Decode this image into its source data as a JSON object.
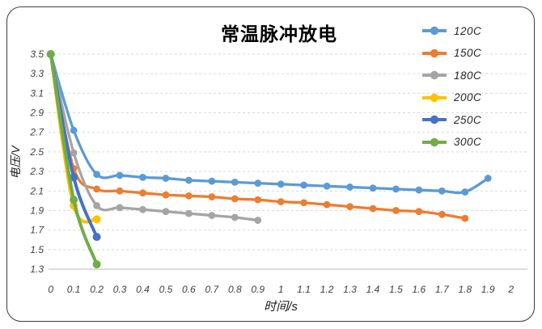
{
  "chart_data": {
    "type": "line",
    "title": "常温脉冲放电",
    "xlabel": "时间/s",
    "ylabel": "电压/V",
    "xlim": [
      0,
      2
    ],
    "ylim": [
      1.3,
      3.5
    ],
    "x_ticks": [
      "0",
      "0.1",
      "0.2",
      "0.3",
      "0.4",
      "0.5",
      "0.6",
      "0.7",
      "0.8",
      "0.9",
      "1",
      "1.1",
      "1.2",
      "1.3",
      "1.4",
      "1.5",
      "1.6",
      "1.7",
      "1.8",
      "1.9",
      "2"
    ],
    "y_ticks": [
      "1.3",
      "1.5",
      "1.7",
      "1.9",
      "2.1",
      "2.3",
      "2.5",
      "2.7",
      "2.9",
      "3.1",
      "3.3",
      "3.5"
    ],
    "grid": "horizontal-dashed",
    "legend_position": "top-right",
    "series": [
      {
        "name": "120C",
        "color": "#5B9BD5",
        "x": [
          0,
          0.1,
          0.2,
          0.3,
          0.4,
          0.5,
          0.6,
          0.7,
          0.8,
          0.9,
          1,
          1.1,
          1.2,
          1.3,
          1.4,
          1.5,
          1.6,
          1.7,
          1.8,
          1.9
        ],
        "y": [
          3.5,
          2.72,
          2.27,
          2.26,
          2.24,
          2.23,
          2.21,
          2.2,
          2.19,
          2.18,
          2.17,
          2.16,
          2.15,
          2.14,
          2.13,
          2.12,
          2.11,
          2.1,
          2.09,
          2.23
        ]
      },
      {
        "name": "150C",
        "color": "#ED7D31",
        "x": [
          0,
          0.1,
          0.2,
          0.3,
          0.4,
          0.5,
          0.6,
          0.7,
          0.8,
          0.9,
          1,
          1.1,
          1.2,
          1.3,
          1.4,
          1.5,
          1.6,
          1.7,
          1.8
        ],
        "y": [
          3.5,
          2.33,
          2.12,
          2.1,
          2.08,
          2.06,
          2.05,
          2.04,
          2.02,
          2.01,
          1.99,
          1.98,
          1.96,
          1.94,
          1.92,
          1.9,
          1.89,
          1.86,
          1.82
        ]
      },
      {
        "name": "180C",
        "color": "#A5A5A5",
        "x": [
          0,
          0.1,
          0.2,
          0.3,
          0.4,
          0.5,
          0.6,
          0.7,
          0.8,
          0.9
        ],
        "y": [
          3.5,
          2.49,
          1.95,
          1.93,
          1.91,
          1.89,
          1.87,
          1.85,
          1.83,
          1.8
        ]
      },
      {
        "name": "200C",
        "color": "#FFC000",
        "x": [
          0,
          0.1,
          0.2
        ],
        "y": [
          3.5,
          1.95,
          1.81
        ]
      },
      {
        "name": "250C",
        "color": "#4472C4",
        "x": [
          0,
          0.1,
          0.2
        ],
        "y": [
          3.5,
          2.24,
          1.63
        ]
      },
      {
        "name": "300C",
        "color": "#70AD47",
        "x": [
          0,
          0.1,
          0.2
        ],
        "y": [
          3.5,
          2.01,
          1.35
        ]
      }
    ]
  },
  "styles": {
    "grid_color": "#D9D9D9",
    "axis_line_color": "#C6C6C6",
    "tick_color": "#404040",
    "title_color": "#000000",
    "border_color": "#3D3D3D",
    "background": "#FFFFFF"
  }
}
